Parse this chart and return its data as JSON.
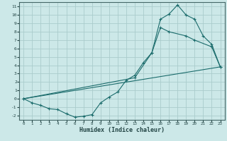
{
  "xlabel": "Humidex (Indice chaleur)",
  "bg_color": "#cce8e8",
  "grid_color": "#aacccc",
  "line_color": "#1a6b6b",
  "xlim": [
    -0.5,
    23.5
  ],
  "ylim": [
    -2.5,
    11.5
  ],
  "xticks": [
    0,
    1,
    2,
    3,
    4,
    5,
    6,
    7,
    8,
    9,
    10,
    11,
    12,
    13,
    14,
    15,
    16,
    17,
    18,
    19,
    20,
    21,
    22,
    23
  ],
  "yticks": [
    -2,
    -1,
    0,
    1,
    2,
    3,
    4,
    5,
    6,
    7,
    8,
    9,
    10,
    11
  ],
  "line1_x": [
    0,
    1,
    2,
    3,
    4,
    5,
    6,
    7,
    8,
    9,
    10,
    11,
    12,
    13,
    14,
    15,
    16,
    17,
    18,
    19,
    20,
    21,
    22,
    23
  ],
  "line1_y": [
    0.0,
    -0.5,
    -0.8,
    -1.2,
    -1.3,
    -1.8,
    -2.2,
    -2.1,
    -1.9,
    -0.5,
    0.2,
    0.8,
    2.2,
    2.8,
    4.3,
    5.5,
    9.5,
    10.1,
    11.2,
    10.0,
    9.5,
    7.5,
    6.5,
    3.8
  ],
  "line2_x": [
    0,
    23
  ],
  "line2_y": [
    0.0,
    3.8
  ],
  "line3_x": [
    0,
    13,
    15,
    16,
    17,
    19,
    20,
    22,
    23
  ],
  "line3_y": [
    0.0,
    2.5,
    5.5,
    8.5,
    8.0,
    7.5,
    7.0,
    6.2,
    3.8
  ]
}
